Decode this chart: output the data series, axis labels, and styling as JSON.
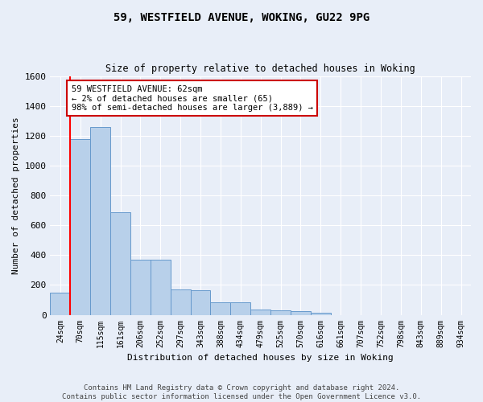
{
  "title1": "59, WESTFIELD AVENUE, WOKING, GU22 9PG",
  "title2": "Size of property relative to detached houses in Woking",
  "xlabel": "Distribution of detached houses by size in Woking",
  "ylabel": "Number of detached properties",
  "bar_labels": [
    "24sqm",
    "70sqm",
    "115sqm",
    "161sqm",
    "206sqm",
    "252sqm",
    "297sqm",
    "343sqm",
    "388sqm",
    "434sqm",
    "479sqm",
    "525sqm",
    "570sqm",
    "616sqm",
    "661sqm",
    "707sqm",
    "752sqm",
    "798sqm",
    "843sqm",
    "889sqm",
    "934sqm"
  ],
  "bar_values": [
    150,
    1175,
    1260,
    685,
    370,
    370,
    170,
    165,
    85,
    85,
    35,
    30,
    22,
    12,
    0,
    0,
    0,
    0,
    0,
    0,
    0
  ],
  "bar_color": "#b8d0ea",
  "bar_edge_color": "#6699cc",
  "background_color": "#e8eef8",
  "grid_color": "#ffffff",
  "red_line_index": 0.5,
  "annotation_text": "59 WESTFIELD AVENUE: 62sqm\n← 2% of detached houses are smaller (65)\n98% of semi-detached houses are larger (3,889) →",
  "annotation_box_facecolor": "#ffffff",
  "annotation_box_edgecolor": "#cc0000",
  "footer_text": "Contains HM Land Registry data © Crown copyright and database right 2024.\nContains public sector information licensed under the Open Government Licence v3.0.",
  "ylim": [
    0,
    1600
  ],
  "yticks": [
    0,
    200,
    400,
    600,
    800,
    1000,
    1200,
    1400,
    1600
  ]
}
